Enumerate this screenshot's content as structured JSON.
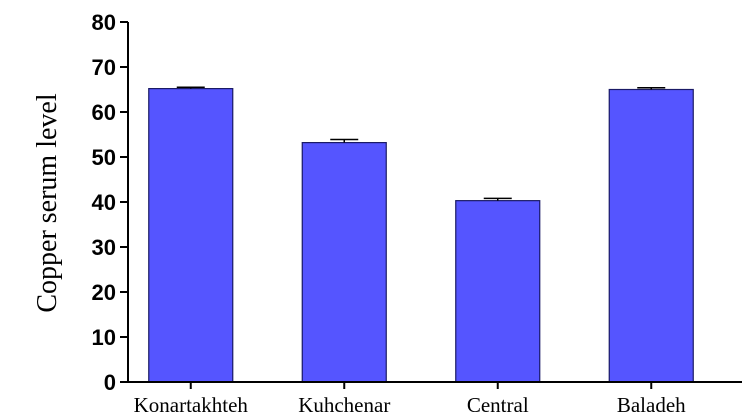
{
  "chart_data": {
    "type": "bar",
    "categories": [
      "Konartakhteh",
      "Kuhchenar",
      "Central",
      "Baladeh"
    ],
    "values": [
      65.2,
      53.2,
      40.3,
      65.0
    ],
    "errors": [
      0.3,
      0.7,
      0.5,
      0.4
    ],
    "title": "",
    "xlabel": "",
    "ylabel": "Copper serum level",
    "ylim": [
      0,
      80
    ],
    "yticks": [
      "0",
      "10",
      "20",
      "30",
      "40",
      "50",
      "60",
      "70",
      "80"
    ],
    "grid": false,
    "legend": "none",
    "colors": {
      "bar_fill": "#5555ff",
      "bar_edge": "#1a1a66",
      "axis": "#000000"
    }
  }
}
